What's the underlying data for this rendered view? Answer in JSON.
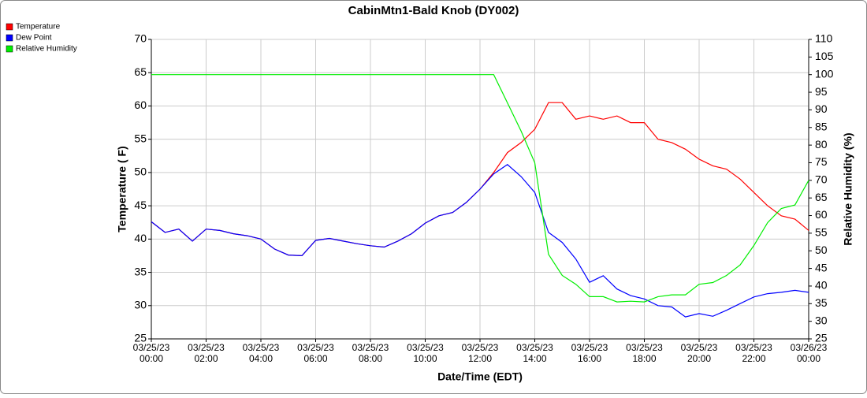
{
  "chart_data": {
    "type": "line",
    "title": "CabinMtn1-Bald Knob (DY002)",
    "x_label": "Date/Time (EDT)",
    "y_label": "Temperature ( F)",
    "y2_label": "Relative Humidity (%)",
    "x": [
      "03/25/23 00:00",
      "03/25/23 00:30",
      "03/25/23 01:00",
      "03/25/23 01:30",
      "03/25/23 02:00",
      "03/25/23 02:30",
      "03/25/23 03:00",
      "03/25/23 03:30",
      "03/25/23 04:00",
      "03/25/23 04:30",
      "03/25/23 05:00",
      "03/25/23 05:30",
      "03/25/23 06:00",
      "03/25/23 06:30",
      "03/25/23 07:00",
      "03/25/23 07:30",
      "03/25/23 08:00",
      "03/25/23 08:30",
      "03/25/23 09:00",
      "03/25/23 09:30",
      "03/25/23 10:00",
      "03/25/23 10:30",
      "03/25/23 11:00",
      "03/25/23 11:30",
      "03/25/23 12:00",
      "03/25/23 12:30",
      "03/25/23 13:00",
      "03/25/23 13:30",
      "03/25/23 14:00",
      "03/25/23 14:30",
      "03/25/23 15:00",
      "03/25/23 15:30",
      "03/25/23 16:00",
      "03/25/23 16:30",
      "03/25/23 17:00",
      "03/25/23 17:30",
      "03/25/23 18:00",
      "03/25/23 18:30",
      "03/25/23 19:00",
      "03/25/23 19:30",
      "03/25/23 20:00",
      "03/25/23 20:30",
      "03/25/23 21:00",
      "03/25/23 21:30",
      "03/25/23 22:00",
      "03/25/23 22:30",
      "03/25/23 23:00",
      "03/25/23 23:30",
      "03/26/23 00:00"
    ],
    "series": [
      {
        "name": "Temperature",
        "color": "#ff0000",
        "values": [
          42.6,
          41.0,
          41.5,
          39.7,
          41.5,
          41.3,
          40.8,
          40.5,
          40.0,
          38.5,
          37.6,
          37.5,
          39.8,
          40.1,
          39.7,
          39.3,
          39.0,
          38.8,
          39.7,
          40.8,
          42.4,
          43.5,
          44.0,
          45.5,
          47.5,
          50.0,
          53.0,
          54.5,
          56.5,
          60.5,
          60.5,
          58.0,
          58.5,
          58.0,
          58.5,
          57.5,
          57.5,
          55.0,
          54.5,
          53.5,
          52.0,
          51.0,
          50.5,
          49.0,
          47.0,
          45.0,
          43.5,
          43.0,
          41.3
        ]
      },
      {
        "name": "Dew Point",
        "color": "#0000ff",
        "values": [
          42.6,
          41.0,
          41.5,
          39.7,
          41.5,
          41.3,
          40.8,
          40.5,
          40.0,
          38.5,
          37.6,
          37.5,
          39.8,
          40.1,
          39.7,
          39.3,
          39.0,
          38.8,
          39.7,
          40.8,
          42.4,
          43.5,
          44.0,
          45.5,
          47.5,
          49.8,
          51.2,
          49.4,
          47.0,
          41.0,
          39.5,
          37.0,
          33.5,
          34.5,
          32.5,
          31.5,
          31.0,
          30.0,
          29.8,
          28.3,
          28.8,
          28.4,
          29.3,
          30.3,
          31.3,
          31.8,
          32.0,
          32.3,
          32.0
        ]
      },
      {
        "name": "Relative Humidity",
        "color": "#00ee00",
        "axis": "y2",
        "values": [
          100,
          100,
          100,
          100,
          100,
          100,
          100,
          100,
          100,
          100,
          100,
          100,
          100,
          100,
          100,
          100,
          100,
          100,
          100,
          100,
          100,
          100,
          100,
          100,
          100,
          100,
          92,
          84,
          75,
          49,
          43,
          40.5,
          37,
          37,
          35.5,
          35.7,
          35.5,
          37,
          37.5,
          37.5,
          40.5,
          41,
          43,
          46,
          51.5,
          58,
          62,
          63,
          70
        ]
      }
    ],
    "xlim": [
      "03/25/23 00:00",
      "03/26/23 00:00"
    ],
    "xticks": [
      "03/25/23 00:00",
      "03/25/23 02:00",
      "03/25/23 04:00",
      "03/25/23 06:00",
      "03/25/23 08:00",
      "03/25/23 10:00",
      "03/25/23 12:00",
      "03/25/23 14:00",
      "03/25/23 16:00",
      "03/25/23 18:00",
      "03/25/23 20:00",
      "03/25/23 22:00",
      "03/26/23 00:00"
    ],
    "ylim": [
      25,
      70
    ],
    "yticks": [
      25,
      30,
      35,
      40,
      45,
      50,
      55,
      60,
      65,
      70
    ],
    "y2lim": [
      25,
      110
    ],
    "y2ticks": [
      25,
      30,
      35,
      40,
      45,
      50,
      55,
      60,
      65,
      70,
      75,
      80,
      85,
      90,
      95,
      100,
      105,
      110
    ],
    "grid": true,
    "legend": "top-left"
  }
}
